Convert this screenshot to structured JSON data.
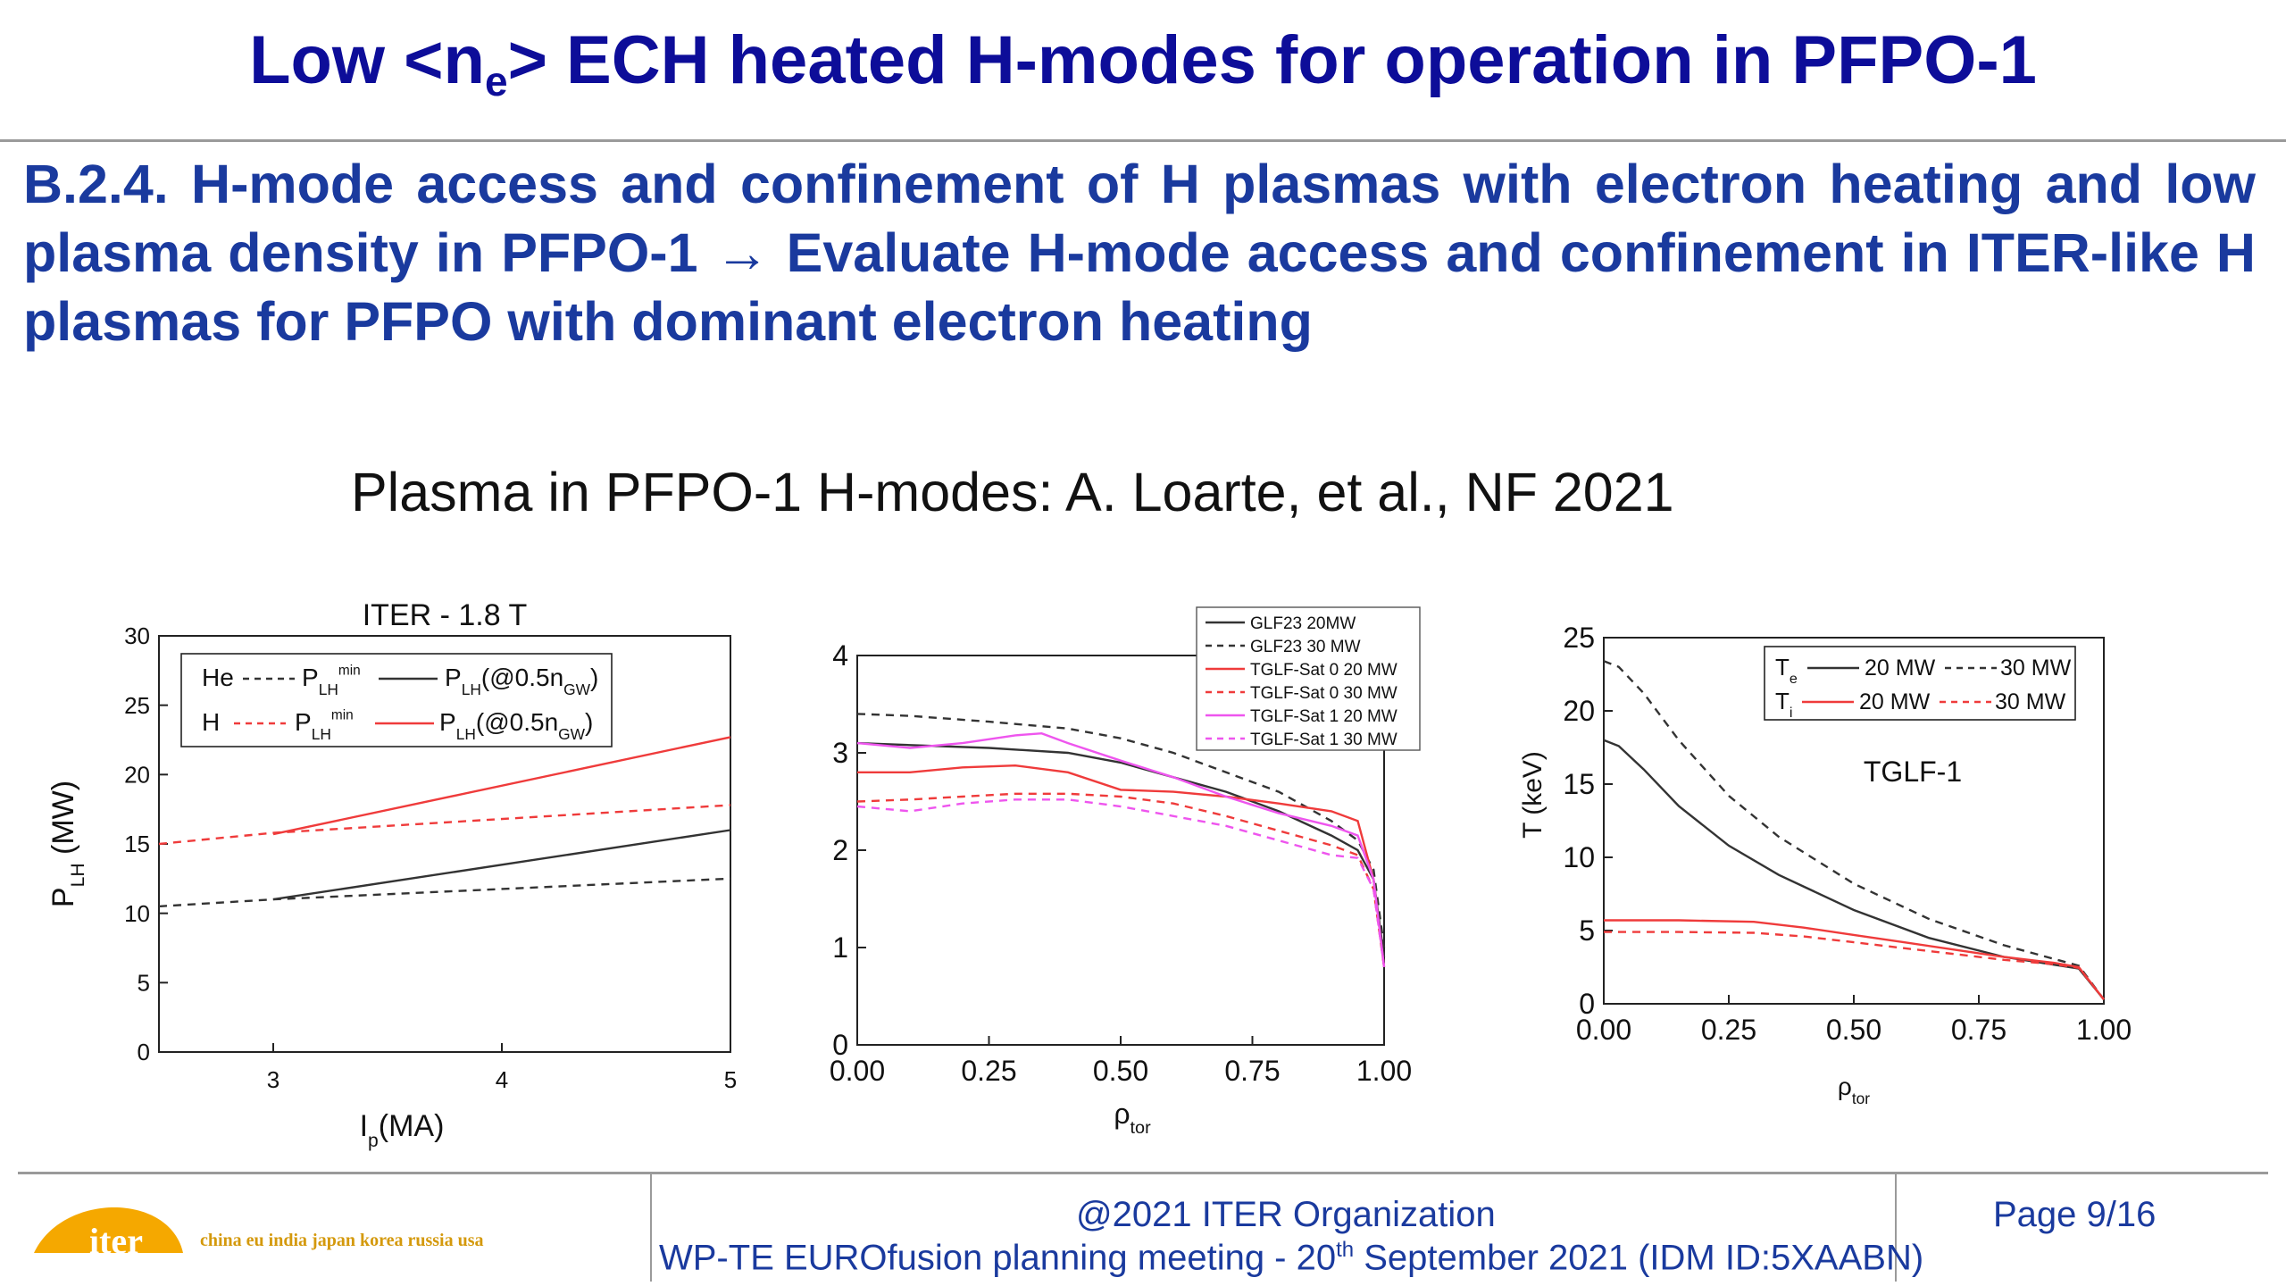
{
  "slide": {
    "title_pre": "Low <n",
    "title_sub": "e",
    "title_post": "> ECH heated H-modes for operation in PFPO-1",
    "subheading": "B.2.4. H-mode access and confinement of H plasmas with electron heating and low plasma density in PFPO-1 → Evaluate H-mode access and confinement in ITER-like H plasmas for PFPO with dominant electron heating",
    "caption": "Plasma in PFPO-1 H-modes: A. Loarte, et al., NF 2021"
  },
  "footer": {
    "copyright": "@2021 ITER Organization",
    "meeting_pre": "WP-TE EUROfusion planning meeting -  20",
    "meeting_sup": "th",
    "meeting_post": " September 2021 (IDM ID:5XAABN)",
    "page": "Page 9/16",
    "logo_word": "iter",
    "partners": "china eu india japan korea russia usa"
  },
  "colors": {
    "title": "#0d0d99",
    "text_blue": "#1a3a9e",
    "logo": "#f5a800",
    "red": "#ef3b3b",
    "magenta": "#ee55ee",
    "dark": "#333333"
  },
  "chart_data": [
    {
      "type": "line",
      "title": "ITER - 1.8 T",
      "xlabel": "I_p(MA)",
      "ylabel": "P_LH (MW)",
      "xlim": [
        2.5,
        5
      ],
      "ylim": [
        0,
        30
      ],
      "xticks": [
        3,
        4,
        5
      ],
      "yticks": [
        0,
        5,
        10,
        15,
        20,
        25,
        30
      ],
      "legend_position": "top-left",
      "legend": {
        "row1_species": "He",
        "row2_species": "H",
        "pmin": "P_LH^min",
        "pgw": "P_LH(@0.5n_GW)"
      },
      "series": [
        {
          "species": "He",
          "kind": "P_LH^min",
          "style": "dashed",
          "color": "#333333",
          "x": [
            2.5,
            3,
            5
          ],
          "y": [
            10.5,
            11.0,
            12.5
          ]
        },
        {
          "species": "He",
          "kind": "P_LH(@0.5n_GW)",
          "style": "solid",
          "color": "#333333",
          "x": [
            3,
            5
          ],
          "y": [
            11.0,
            16.0
          ]
        },
        {
          "species": "H",
          "kind": "P_LH^min",
          "style": "dashed",
          "color": "#ef3b3b",
          "x": [
            2.5,
            3,
            5
          ],
          "y": [
            15.0,
            15.8,
            17.8
          ]
        },
        {
          "species": "H",
          "kind": "P_LH(@0.5n_GW)",
          "style": "solid",
          "color": "#ef3b3b",
          "x": [
            3,
            5
          ],
          "y": [
            15.7,
            22.7
          ]
        }
      ]
    },
    {
      "type": "line",
      "xlabel": "ρ_tor",
      "ylabel": "",
      "xlim": [
        0,
        1
      ],
      "ylim": [
        0,
        4
      ],
      "xticks": [
        0.0,
        0.25,
        0.5,
        0.75,
        1.0
      ],
      "xtick_labels": [
        "0.00",
        "0.25",
        "0.50",
        "0.75",
        "1.00"
      ],
      "yticks": [
        0,
        1,
        2,
        3,
        4
      ],
      "legend_position": "top-right",
      "series": [
        {
          "name": "GLF23 20MW",
          "style": "solid",
          "color": "#333333",
          "x": [
            0,
            0.1,
            0.25,
            0.4,
            0.5,
            0.6,
            0.7,
            0.8,
            0.9,
            0.95,
            0.98,
            1.0
          ],
          "y": [
            3.1,
            3.08,
            3.05,
            3.0,
            2.9,
            2.75,
            2.6,
            2.4,
            2.15,
            2.0,
            1.7,
            0.9
          ]
        },
        {
          "name": "GLF23 30 MW",
          "style": "dashed",
          "color": "#333333",
          "x": [
            0,
            0.1,
            0.25,
            0.4,
            0.5,
            0.6,
            0.7,
            0.8,
            0.9,
            0.95,
            0.98,
            1.0
          ],
          "y": [
            3.4,
            3.38,
            3.32,
            3.25,
            3.15,
            3.0,
            2.8,
            2.6,
            2.3,
            2.1,
            1.8,
            1.0
          ]
        },
        {
          "name": "TGLF-Sat 0 20 MW",
          "style": "solid",
          "color": "#ef3b3b",
          "x": [
            0,
            0.1,
            0.2,
            0.3,
            0.4,
            0.5,
            0.6,
            0.7,
            0.8,
            0.9,
            0.95,
            0.98,
            1.0
          ],
          "y": [
            2.8,
            2.8,
            2.85,
            2.87,
            2.8,
            2.62,
            2.6,
            2.55,
            2.48,
            2.4,
            2.3,
            1.7,
            0.8
          ]
        },
        {
          "name": "TGLF-Sat 0 30 MW",
          "style": "dashed",
          "color": "#ef3b3b",
          "x": [
            0,
            0.1,
            0.2,
            0.3,
            0.4,
            0.5,
            0.6,
            0.7,
            0.8,
            0.9,
            0.95,
            0.98,
            1.0
          ],
          "y": [
            2.5,
            2.52,
            2.55,
            2.58,
            2.58,
            2.55,
            2.48,
            2.35,
            2.2,
            2.05,
            1.95,
            1.6,
            0.8
          ]
        },
        {
          "name": "TGLF-Sat 1 20 MW",
          "style": "solid",
          "color": "#ee55ee",
          "x": [
            0,
            0.1,
            0.2,
            0.3,
            0.35,
            0.4,
            0.5,
            0.6,
            0.7,
            0.8,
            0.9,
            0.95,
            0.98,
            1.0
          ],
          "y": [
            3.1,
            3.05,
            3.1,
            3.18,
            3.2,
            3.1,
            2.92,
            2.75,
            2.55,
            2.38,
            2.25,
            2.15,
            1.7,
            0.8
          ]
        },
        {
          "name": "TGLF-Sat 1 30 MW",
          "style": "dashed",
          "color": "#ee55ee",
          "x": [
            0,
            0.1,
            0.2,
            0.3,
            0.4,
            0.5,
            0.6,
            0.7,
            0.8,
            0.9,
            0.95,
            0.98,
            1.0
          ],
          "y": [
            2.45,
            2.4,
            2.48,
            2.52,
            2.52,
            2.45,
            2.35,
            2.25,
            2.1,
            1.95,
            1.92,
            1.6,
            0.8
          ]
        }
      ]
    },
    {
      "type": "line",
      "xlabel": "ρ_tor",
      "ylabel": "T (keV)",
      "xlim": [
        0,
        1
      ],
      "ylim": [
        0,
        25
      ],
      "xticks": [
        0.0,
        0.25,
        0.5,
        0.75,
        1.0
      ],
      "xtick_labels": [
        "0.00",
        "0.25",
        "0.50",
        "0.75",
        "1.00"
      ],
      "yticks": [
        0,
        5,
        10,
        15,
        20,
        25
      ],
      "annotation": "TGLF-1",
      "legend_position": "top-right",
      "legend": {
        "te": "T_e",
        "ti": "T_i",
        "p20": "20 MW",
        "p30": "30 MW"
      },
      "series": [
        {
          "quantity": "T_e",
          "power": "20 MW",
          "style": "solid",
          "color": "#333333",
          "x": [
            0,
            0.03,
            0.08,
            0.15,
            0.25,
            0.35,
            0.5,
            0.65,
            0.8,
            0.95,
            1.0
          ],
          "y": [
            18.0,
            17.6,
            16.0,
            13.5,
            10.8,
            8.8,
            6.4,
            4.5,
            3.2,
            2.4,
            0.3
          ]
        },
        {
          "quantity": "T_e",
          "power": "30 MW",
          "style": "dashed",
          "color": "#333333",
          "x": [
            0,
            0.03,
            0.08,
            0.15,
            0.25,
            0.35,
            0.5,
            0.65,
            0.8,
            0.95,
            1.0
          ],
          "y": [
            23.4,
            23.0,
            21.2,
            18.0,
            14.2,
            11.4,
            8.2,
            5.8,
            4.0,
            2.6,
            0.3
          ]
        },
        {
          "quantity": "T_i",
          "power": "20 MW",
          "style": "solid",
          "color": "#ef3b3b",
          "x": [
            0,
            0.15,
            0.3,
            0.4,
            0.5,
            0.6,
            0.7,
            0.8,
            0.9,
            0.95,
            1.0
          ],
          "y": [
            5.7,
            5.7,
            5.6,
            5.2,
            4.7,
            4.2,
            3.7,
            3.2,
            2.8,
            2.5,
            0.3
          ]
        },
        {
          "quantity": "T_i",
          "power": "30 MW",
          "style": "dashed",
          "color": "#ef3b3b",
          "x": [
            0,
            0.15,
            0.3,
            0.4,
            0.5,
            0.6,
            0.7,
            0.8,
            0.9,
            0.95,
            1.0
          ],
          "y": [
            4.9,
            4.9,
            4.85,
            4.6,
            4.2,
            3.8,
            3.4,
            3.0,
            2.7,
            2.45,
            0.3
          ]
        }
      ]
    }
  ]
}
